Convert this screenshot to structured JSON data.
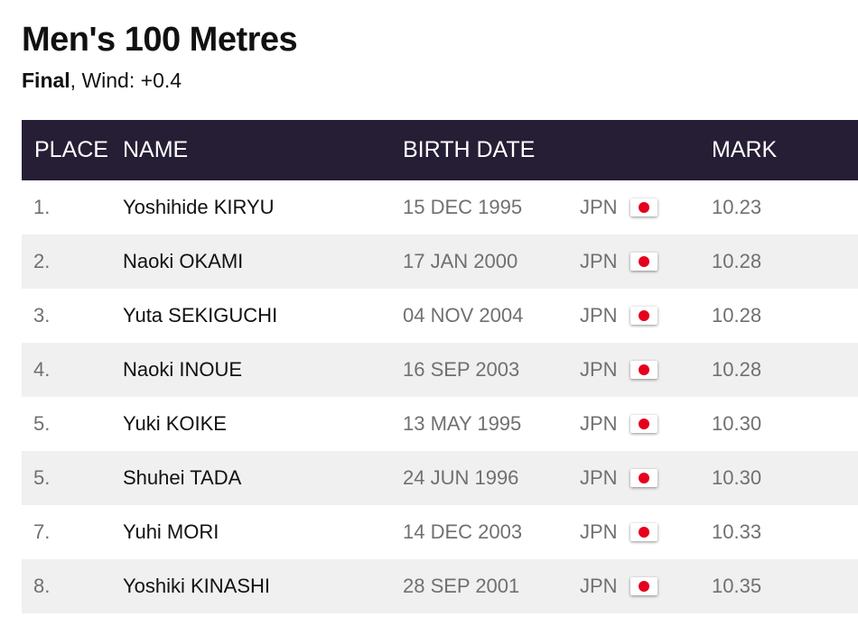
{
  "event": {
    "title": "Men's 100 Metres",
    "phase": "Final",
    "wind": ", Wind: +0.4"
  },
  "colors": {
    "header_bg": "#261e35",
    "row_alt_bg": "#f0f0f0",
    "flag_dot": "#e5001e"
  },
  "table": {
    "headers": {
      "place": "PLACE",
      "name": "NAME",
      "birth_date": "BIRTH DATE",
      "country": "",
      "mark": "MARK"
    },
    "rows": [
      {
        "place": "1.",
        "name": "Yoshihide KIRYU",
        "birth_date": "15 DEC 1995",
        "country": "JPN",
        "flag_icon": "japan-flag-icon",
        "mark": "10.23"
      },
      {
        "place": "2.",
        "name": "Naoki OKAMI",
        "birth_date": "17 JAN 2000",
        "country": "JPN",
        "flag_icon": "japan-flag-icon",
        "mark": "10.28"
      },
      {
        "place": "3.",
        "name": "Yuta SEKIGUCHI",
        "birth_date": "04 NOV 2004",
        "country": "JPN",
        "flag_icon": "japan-flag-icon",
        "mark": "10.28"
      },
      {
        "place": "4.",
        "name": "Naoki INOUE",
        "birth_date": "16 SEP 2003",
        "country": "JPN",
        "flag_icon": "japan-flag-icon",
        "mark": "10.28"
      },
      {
        "place": "5.",
        "name": "Yuki KOIKE",
        "birth_date": "13 MAY 1995",
        "country": "JPN",
        "flag_icon": "japan-flag-icon",
        "mark": "10.30"
      },
      {
        "place": "5.",
        "name": "Shuhei TADA",
        "birth_date": "24 JUN 1996",
        "country": "JPN",
        "flag_icon": "japan-flag-icon",
        "mark": "10.30"
      },
      {
        "place": "7.",
        "name": "Yuhi MORI",
        "birth_date": "14 DEC 2003",
        "country": "JPN",
        "flag_icon": "japan-flag-icon",
        "mark": "10.33"
      },
      {
        "place": "8.",
        "name": "Yoshiki KINASHI",
        "birth_date": "28 SEP 2001",
        "country": "JPN",
        "flag_icon": "japan-flag-icon",
        "mark": "10.35"
      }
    ]
  }
}
